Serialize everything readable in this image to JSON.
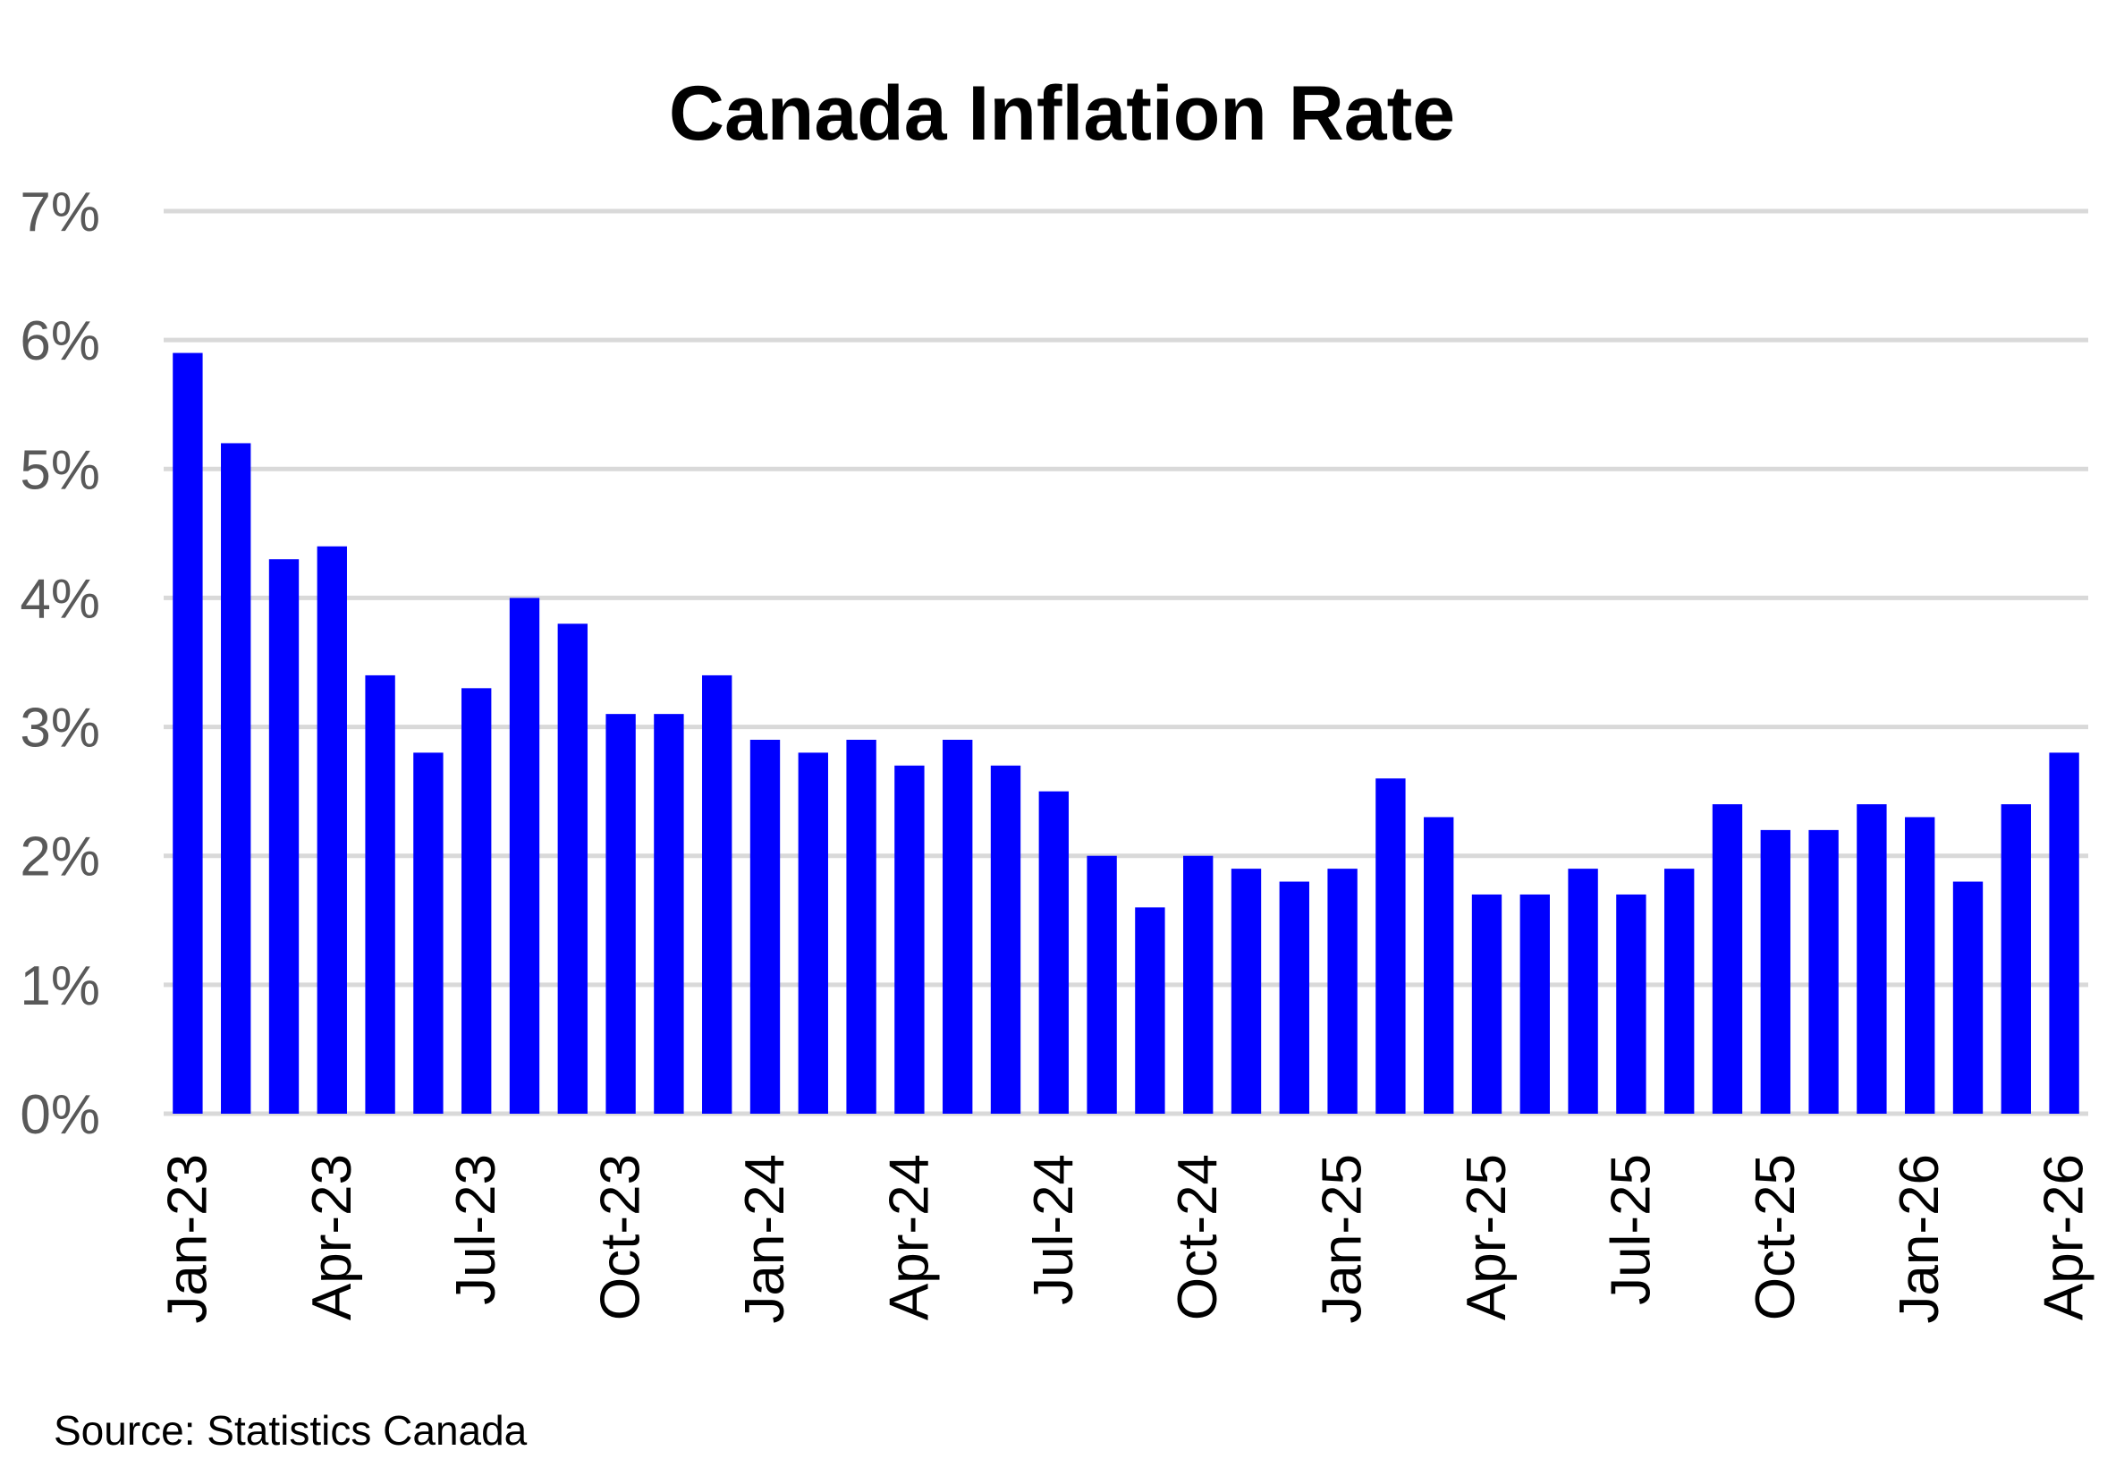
{
  "title": "Canada Inflation Rate",
  "source": "Source: Statistics Canada",
  "chart_data": {
    "type": "bar",
    "title": "Canada Inflation Rate",
    "xlabel": "",
    "ylabel": "",
    "ylim": [
      0,
      7
    ],
    "y_ticks": [
      "0%",
      "1%",
      "2%",
      "3%",
      "4%",
      "5%",
      "6%",
      "7%"
    ],
    "grid": "horizontal",
    "bar_color": "#0000ff",
    "categories": [
      "Jan-23",
      "Feb-23",
      "Mar-23",
      "Apr-23",
      "May-23",
      "Jun-23",
      "Jul-23",
      "Aug-23",
      "Sep-23",
      "Oct-23",
      "Nov-23",
      "Dec-23",
      "Jan-24",
      "Feb-24",
      "Mar-24",
      "Apr-24",
      "May-24",
      "Jun-24",
      "Jul-24",
      "Aug-24",
      "Sep-24",
      "Oct-24",
      "Nov-24",
      "Dec-24",
      "Jan-25",
      "Feb-25",
      "Mar-25",
      "Apr-25",
      "May-25",
      "Jun-25",
      "Jul-25",
      "Aug-25",
      "Sep-25",
      "Oct-25",
      "Nov-25",
      "Dec-25",
      "Jan-26",
      "Feb-26",
      "Mar-26",
      "Apr-26"
    ],
    "tick_labels": [
      "Jan-23",
      "Apr-23",
      "Jul-23",
      "Oct-23",
      "Jan-24",
      "Apr-24",
      "Jul-24",
      "Oct-24",
      "Jan-25",
      "Apr-25",
      "Jul-25",
      "Oct-25",
      "Jan-26",
      "Apr-26"
    ],
    "values": [
      5.9,
      5.2,
      4.3,
      4.4,
      3.4,
      2.8,
      3.3,
      4.0,
      3.8,
      3.1,
      3.1,
      3.4,
      2.9,
      2.8,
      2.9,
      2.7,
      2.9,
      2.7,
      2.5,
      2.0,
      1.6,
      2.0,
      1.9,
      1.8,
      1.9,
      2.6,
      2.3,
      1.7,
      1.7,
      1.9,
      1.7,
      1.9,
      2.4,
      2.2,
      2.2,
      2.4,
      2.3,
      1.8,
      2.4,
      2.8
    ]
  }
}
